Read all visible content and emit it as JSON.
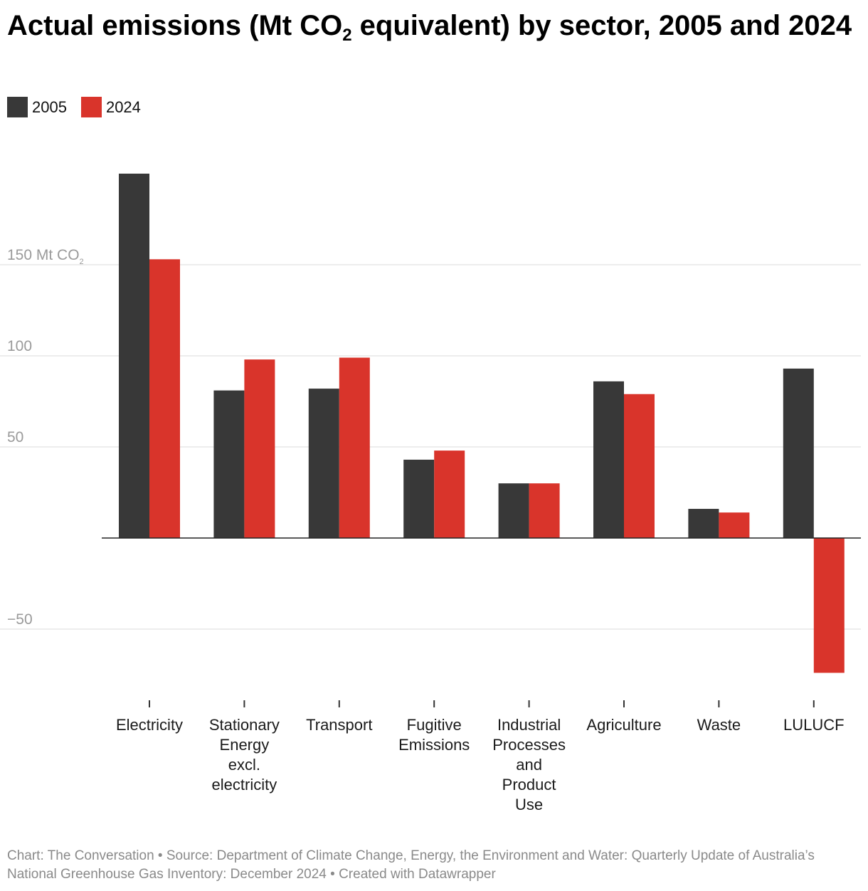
{
  "title_main": "Actual emissions (Mt CO",
  "title_sub": "2",
  "title_rest": " equivalent) by sector, 2005 and 2024",
  "footer": "Chart: The Conversation • Source: Department of Climate Change, Energy, the Environment and Water: Quarterly Update of Australia’s National Greenhouse Gas Inventory: December 2024 • Created with Datawrapper",
  "chart_data": {
    "type": "bar",
    "title": "Actual emissions (Mt CO2 equivalent) by sector, 2005 and 2024",
    "categories": [
      [
        "Electricity"
      ],
      [
        "Stationary",
        "Energy",
        "excl.",
        "electricity"
      ],
      [
        "Transport"
      ],
      [
        "Fugitive",
        "Emissions"
      ],
      [
        "Industrial",
        "Processes",
        "and",
        "Product",
        "Use"
      ],
      [
        "Agriculture"
      ],
      [
        "Waste"
      ],
      [
        "LULUCF"
      ]
    ],
    "series": [
      {
        "name": "2005",
        "color": "#383838",
        "values": [
          200,
          81,
          82,
          43,
          30,
          86,
          16,
          93
        ]
      },
      {
        "name": "2024",
        "color": "#d9342b",
        "values": [
          153,
          98,
          99,
          48,
          30,
          79,
          14,
          -74
        ]
      }
    ],
    "y_ticks": [
      {
        "value": 150,
        "label": "150 Mt CO",
        "sub": "2"
      },
      {
        "value": 100,
        "label": "100"
      },
      {
        "value": 50,
        "label": "50"
      },
      {
        "value": -50,
        "label": "−50"
      }
    ],
    "ylim": [
      -80,
      205
    ],
    "grid": true,
    "legend_position": "top-left"
  }
}
